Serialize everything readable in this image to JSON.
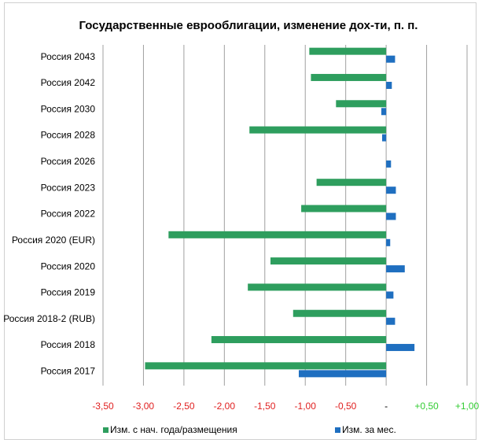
{
  "chart_data": {
    "type": "hbar",
    "title": "Государственные еврооблигации, изменение дох-ти, п. п.",
    "categories": [
      "Россия 2043",
      "Россия 2042",
      "Россия 2030",
      "Россия 2028",
      "Россия 2026",
      "Россия 2023",
      "Россия 2022",
      "Россия 2020 (EUR)",
      "Россия 2020",
      "Россия 2019",
      "Россия 2018-2 (RUB)",
      "Россия 2018",
      "Россия 2017"
    ],
    "series": [
      {
        "name": "Изм. с нач. года/размещения",
        "color": "#2e9e5e",
        "values": [
          -0.95,
          -0.93,
          -0.62,
          -1.69,
          0,
          -0.86,
          -1.05,
          -2.69,
          -1.43,
          -1.71,
          -1.15,
          -2.16,
          -2.98
        ]
      },
      {
        "name": "Изм. за мес.",
        "color": "#1f6fc0",
        "values": [
          0.11,
          0.07,
          -0.06,
          -0.05,
          0.06,
          0.12,
          0.12,
          0.05,
          0.23,
          0.09,
          0.11,
          0.35,
          -1.08
        ]
      }
    ],
    "xlim": [
      -3.5,
      1.0
    ],
    "xticks": [
      {
        "value": -3.5,
        "label": "-3,50"
      },
      {
        "value": -3.0,
        "label": "-3,00"
      },
      {
        "value": -2.5,
        "label": "-2,50"
      },
      {
        "value": -2.0,
        "label": "-2,00"
      },
      {
        "value": -1.5,
        "label": "-1,50"
      },
      {
        "value": -1.0,
        "label": "-1,00"
      },
      {
        "value": -0.5,
        "label": "-0,50"
      },
      {
        "value": 0,
        "label": "-"
      },
      {
        "value": 0.5,
        "label": "+0,50"
      },
      {
        "value": 1.0,
        "label": "+1,00"
      }
    ],
    "negative_tick_color": "#e02020",
    "positive_tick_color": "#33cc33",
    "grid": true,
    "legend": "bottom"
  }
}
